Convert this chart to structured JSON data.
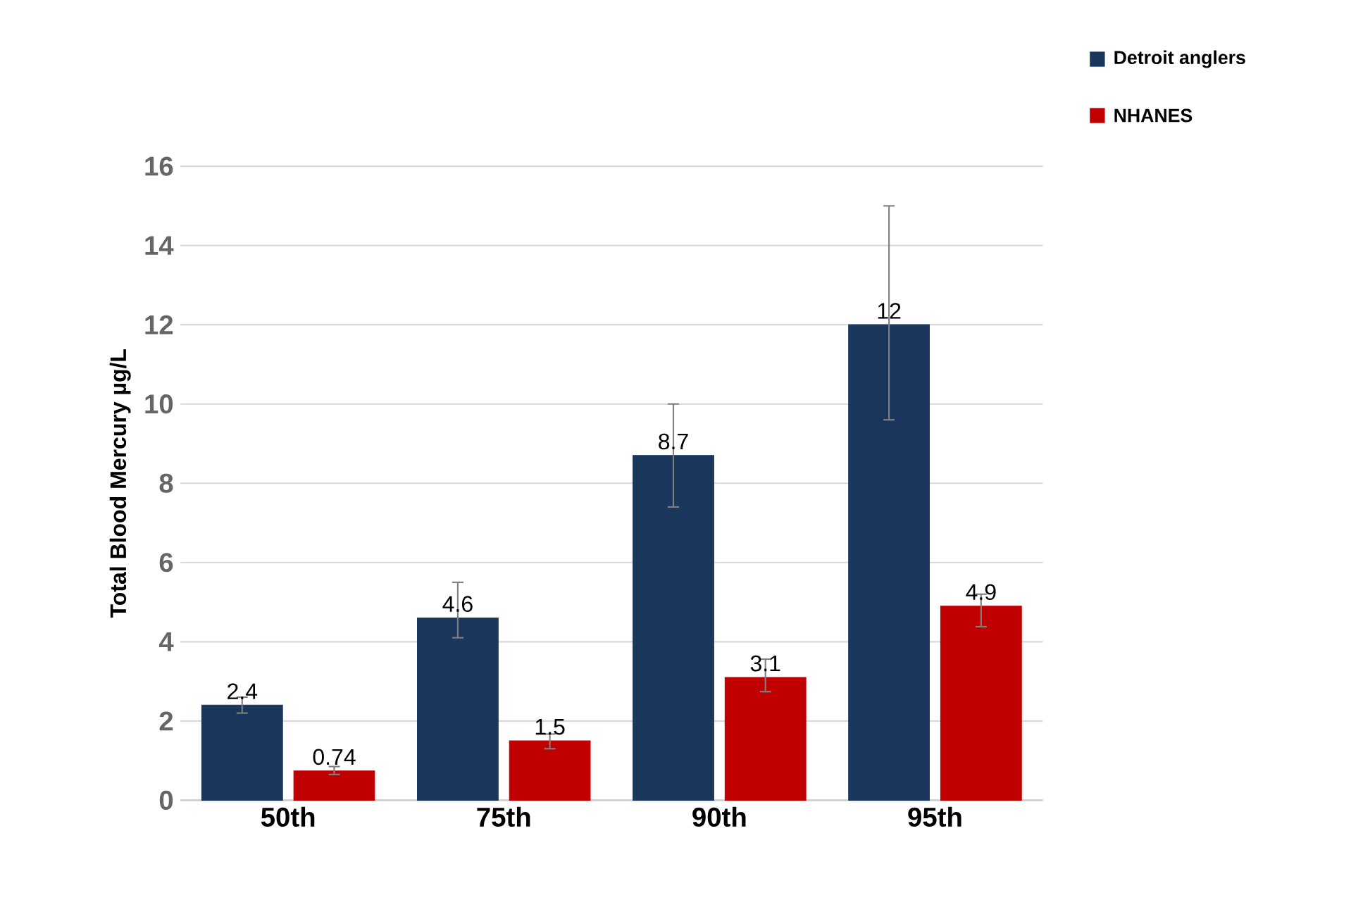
{
  "chart_data": {
    "type": "bar",
    "ylabel": "Total Blood Mercury µg/L",
    "categories": [
      "50th",
      "75th",
      "90th",
      "95th"
    ],
    "series": [
      {
        "name": "Detroit anglers",
        "color": "#1a365d",
        "values": [
          2.4,
          4.6,
          8.7,
          12
        ],
        "errors": [
          [
            2.2,
            2.6
          ],
          [
            4.1,
            5.5
          ],
          [
            7.4,
            10.0
          ],
          [
            9.6,
            15.0
          ]
        ]
      },
      {
        "name": "NHANES",
        "color": "#c00000",
        "values": [
          0.74,
          1.5,
          3.1,
          4.9
        ],
        "errors": [
          [
            0.65,
            0.85
          ],
          [
            1.3,
            1.67
          ],
          [
            2.74,
            3.56
          ],
          [
            4.38,
            5.2
          ]
        ]
      }
    ],
    "ylim": [
      0,
      16
    ],
    "yticks": [
      0,
      2,
      4,
      6,
      8,
      10,
      12,
      14,
      16
    ],
    "grid": "y",
    "legend": "top right",
    "data_labels": true
  }
}
